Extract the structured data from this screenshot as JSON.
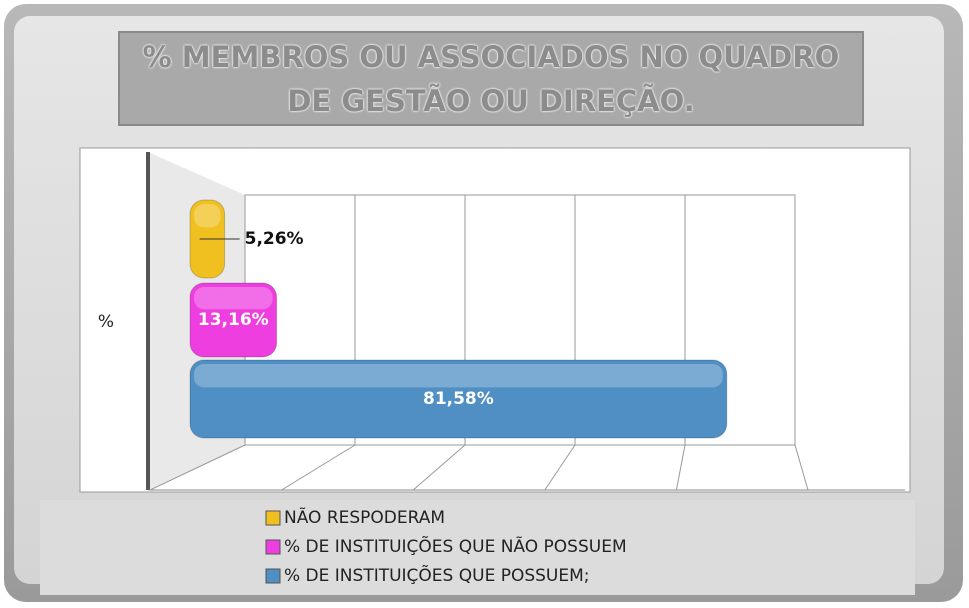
{
  "chart_data": {
    "type": "bar",
    "orientation": "horizontal",
    "title": "% MEMBROS OU ASSOCIADOS NO QUADRO DE GESTÃO OU DIREÇÃO.",
    "categories": [
      "%"
    ],
    "series": [
      {
        "name": "NÃO RESPODERAM",
        "color": "#f0c020",
        "values": [
          5.26
        ],
        "value_labels": [
          "5,26%"
        ]
      },
      {
        "name": "% DE INSTITUIÇÕES QUE NÃO POSSUEM",
        "color": "#ee3ee0",
        "values": [
          13.16
        ],
        "value_labels": [
          "13,16%"
        ]
      },
      {
        "name": "% DE INSTITUIÇÕES QUE POSSUEM;",
        "color": "#4f8fc4",
        "values": [
          81.58
        ],
        "value_labels": [
          "81,58%"
        ]
      }
    ],
    "xlim": [
      0,
      100
    ],
    "xticks": [
      0,
      20,
      40,
      60,
      80,
      100
    ],
    "grid": true,
    "legend": "bottom"
  }
}
